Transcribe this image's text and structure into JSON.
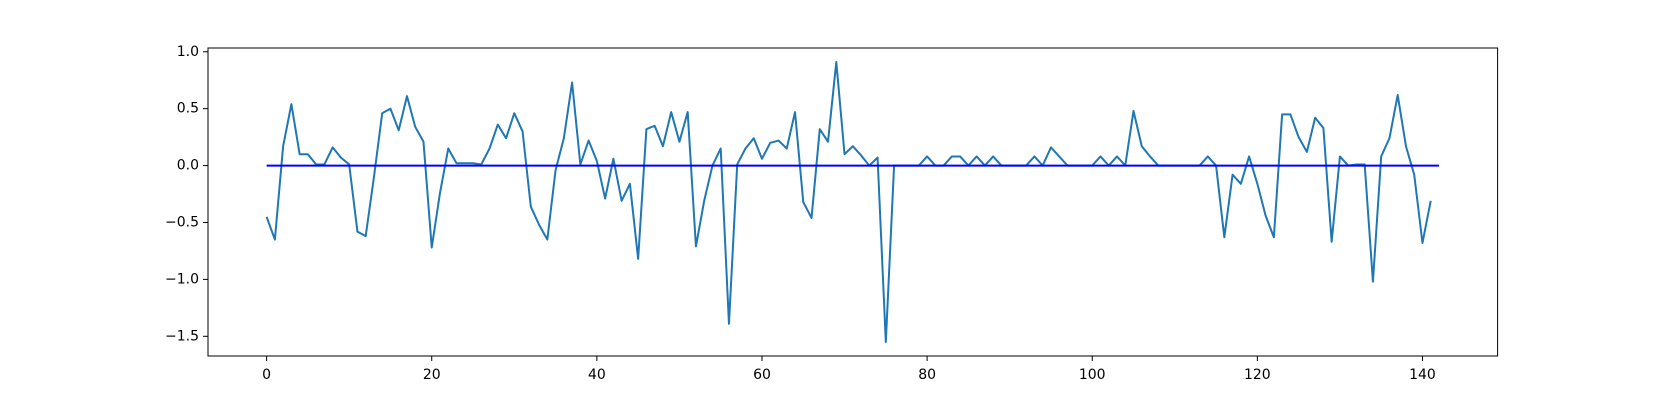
{
  "chart_data": {
    "type": "line",
    "series": [
      {
        "color": "#1f77b4",
        "x": [
          0,
          1,
          2,
          3,
          4,
          5,
          6,
          7,
          8,
          9,
          10,
          11,
          12,
          13,
          14,
          15,
          16,
          17,
          18,
          19,
          20,
          21,
          22,
          23,
          24,
          25,
          26,
          27,
          28,
          29,
          30,
          31,
          32,
          33,
          34,
          35,
          36,
          37,
          38,
          39,
          40,
          41,
          42,
          43,
          44,
          45,
          46,
          47,
          48,
          49,
          50,
          51,
          52,
          53,
          54,
          55,
          56,
          57,
          58,
          59,
          60,
          61,
          62,
          63,
          64,
          65,
          66,
          67,
          68,
          69,
          70,
          71,
          72,
          73,
          74,
          75,
          76,
          77,
          78,
          79,
          80,
          81,
          82,
          83,
          84,
          85,
          86,
          87,
          88,
          89,
          90,
          91,
          92,
          93,
          94,
          95,
          96,
          97,
          98,
          99,
          100,
          101,
          102,
          103,
          104,
          105,
          106,
          107,
          108,
          109,
          110,
          111,
          112,
          113,
          114,
          115,
          116,
          117,
          118,
          119,
          120,
          121,
          122,
          123,
          124,
          125,
          126,
          127,
          128,
          129,
          130,
          131,
          132,
          133,
          134,
          135,
          136,
          137,
          138,
          139,
          140,
          141
        ],
        "values": [
          -0.45,
          -0.65,
          0.17,
          0.54,
          0.1,
          0.1,
          0.01,
          0.01,
          0.16,
          0.07,
          0.01,
          -0.58,
          -0.62,
          -0.1,
          0.46,
          0.5,
          0.31,
          0.61,
          0.34,
          0.21,
          -0.72,
          -0.24,
          0.15,
          0.02,
          0.02,
          0.02,
          0.01,
          0.15,
          0.36,
          0.24,
          0.46,
          0.3,
          -0.36,
          -0.52,
          -0.65,
          -0.04,
          0.24,
          0.73,
          0.01,
          0.22,
          0.04,
          -0.29,
          0.06,
          -0.31,
          -0.16,
          -0.82,
          0.32,
          0.35,
          0.17,
          0.47,
          0.21,
          0.47,
          -0.71,
          -0.31,
          0.0,
          0.15,
          -1.39,
          0.01,
          0.15,
          0.24,
          0.06,
          0.2,
          0.22,
          0.15,
          0.47,
          -0.32,
          -0.46,
          0.32,
          0.21,
          0.91,
          0.1,
          0.17,
          0.09,
          0.0,
          0.07,
          -1.55,
          0.0,
          0.0,
          0.0,
          0.0,
          0.08,
          0.0,
          0.0,
          0.08,
          0.08,
          0.0,
          0.08,
          0.0,
          0.08,
          0.0,
          0.0,
          0.0,
          0.0,
          0.08,
          0.0,
          0.16,
          0.08,
          0.0,
          0.0,
          0.0,
          0.0,
          0.08,
          0.0,
          0.08,
          0.0,
          0.48,
          0.17,
          0.08,
          0.0,
          0.0,
          0.0,
          0.0,
          0.0,
          0.0,
          0.08,
          0.0,
          -0.63,
          -0.08,
          -0.16,
          0.08,
          -0.16,
          -0.44,
          -0.63,
          0.45,
          0.45,
          0.25,
          0.12,
          0.42,
          0.33,
          -0.67,
          0.08,
          0.0,
          0.01,
          0.01,
          -1.02,
          0.08,
          0.24,
          0.62,
          0.17,
          -0.08,
          -0.68,
          -0.31
        ]
      },
      {
        "color": "#0000ff",
        "x": [
          0,
          142
        ],
        "values": [
          0,
          0
        ]
      }
    ],
    "xlim": [
      -7.1,
      149.1
    ],
    "xticks": [
      0,
      20,
      40,
      60,
      80,
      100,
      120,
      140
    ],
    "ylim": [
      -1.673,
      1.033
    ],
    "yticks": [
      {
        "value": -1.5,
        "label": "−1.5"
      },
      {
        "value": -1.0,
        "label": "−1.0"
      },
      {
        "value": -0.5,
        "label": "−0.5"
      },
      {
        "value": 0.0,
        "label": "0.0"
      },
      {
        "value": 0.5,
        "label": "0.5"
      },
      {
        "value": 1.0,
        "label": "1.0"
      }
    ],
    "grid": false
  }
}
